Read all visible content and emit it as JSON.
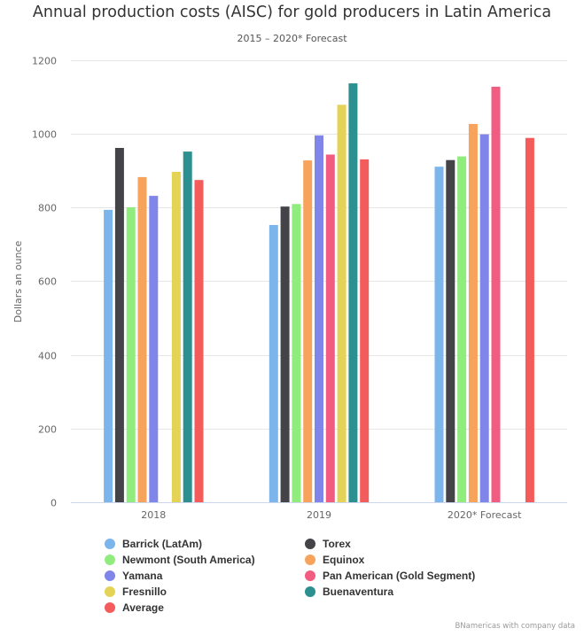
{
  "chart_data": {
    "type": "bar",
    "title": "Annual production costs (AISC) for gold producers in Latin America",
    "subtitle": "2015 – 2020* Forecast",
    "xlabel": "",
    "ylabel": "Dollars an ounce",
    "ylim": [
      0,
      1200
    ],
    "yticks": [
      0,
      200,
      400,
      600,
      800,
      1000,
      1200
    ],
    "grid": true,
    "legend_position": "bottom",
    "categories": [
      "2018",
      "2019",
      "2020* Forecast"
    ],
    "series": [
      {
        "name": "Barrick (LatAm)",
        "color": "#7cb5ec",
        "values": [
          793,
          752,
          910
        ]
      },
      {
        "name": "Torex",
        "color": "#434348",
        "values": [
          961,
          802,
          928
        ]
      },
      {
        "name": "Newmont (South America)",
        "color": "#90ed7d",
        "values": [
          800,
          809,
          938
        ]
      },
      {
        "name": "Equinox",
        "color": "#f7a35c",
        "values": [
          882,
          927,
          1026
        ]
      },
      {
        "name": "Yamana",
        "color": "#8085e9",
        "values": [
          831,
          995,
          998
        ]
      },
      {
        "name": "Pan American (Gold Segment)",
        "color": "#f15c80",
        "values": [
          null,
          943,
          1127
        ]
      },
      {
        "name": "Fresnillo",
        "color": "#e4d354",
        "values": [
          896,
          1078,
          null
        ]
      },
      {
        "name": "Buenaventura",
        "color": "#2b908f",
        "values": [
          951,
          1136,
          null
        ]
      },
      {
        "name": "Average",
        "color": "#f45b5b",
        "values": [
          874,
          930,
          988
        ]
      }
    ],
    "credits": "BNamericas with company data"
  }
}
